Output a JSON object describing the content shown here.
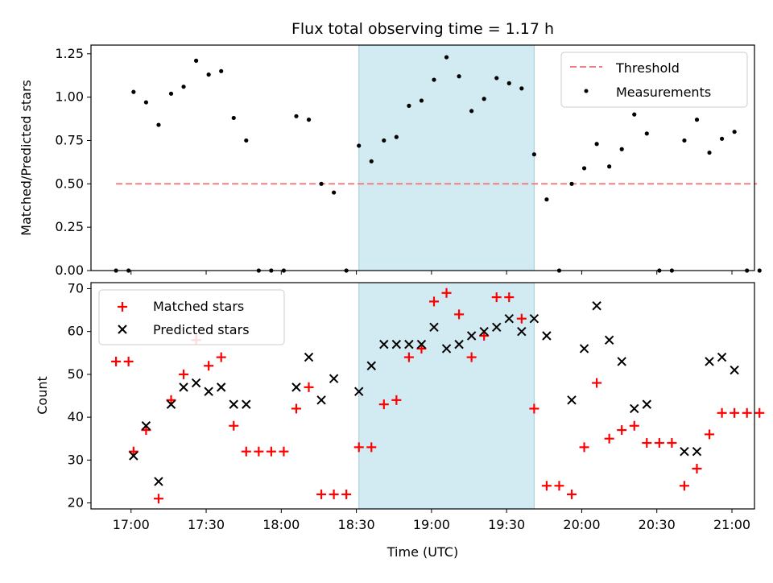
{
  "chart_data": {
    "type": "scatter",
    "title": "Flux total observing time = 1.17 h",
    "xlabel": "Time (UTC)",
    "x_ticks": [
      "17:00",
      "17:30",
      "18:00",
      "18:30",
      "19:00",
      "19:30",
      "20:00",
      "20:30",
      "21:00"
    ],
    "xlim": [
      "16:44",
      "21:09"
    ],
    "shaded_interval": [
      "18:31",
      "19:41"
    ],
    "shade_color": "#add8e6",
    "top": {
      "ylabel": "Matched/Predicted stars",
      "ylim": [
        0,
        1.3
      ],
      "y_ticks": [
        "0.00",
        "0.25",
        "0.50",
        "0.75",
        "1.00",
        "1.25"
      ],
      "legend": {
        "position": "upper right"
      },
      "threshold": {
        "name": "Threshold",
        "y": 0.5,
        "x_range": [
          "16:54",
          "21:10"
        ],
        "color": "#f08080"
      },
      "measurements": {
        "name": "Measurements",
        "color": "#000000",
        "points": [
          [
            "16:54",
            0.0
          ],
          [
            "16:59",
            0.0
          ],
          [
            "17:01",
            1.03
          ],
          [
            "17:06",
            0.97
          ],
          [
            "17:11",
            0.84
          ],
          [
            "17:16",
            1.02
          ],
          [
            "17:21",
            1.06
          ],
          [
            "17:26",
            1.21
          ],
          [
            "17:31",
            1.13
          ],
          [
            "17:36",
            1.15
          ],
          [
            "17:41",
            0.88
          ],
          [
            "17:46",
            0.75
          ],
          [
            "17:51",
            0.0
          ],
          [
            "17:56",
            0.0
          ],
          [
            "18:01",
            0.0
          ],
          [
            "18:06",
            0.89
          ],
          [
            "18:11",
            0.87
          ],
          [
            "18:16",
            0.5
          ],
          [
            "18:21",
            0.45
          ],
          [
            "18:26",
            0.0
          ],
          [
            "18:31",
            0.72
          ],
          [
            "18:36",
            0.63
          ],
          [
            "18:41",
            0.75
          ],
          [
            "18:46",
            0.77
          ],
          [
            "18:51",
            0.95
          ],
          [
            "18:56",
            0.98
          ],
          [
            "19:01",
            1.1
          ],
          [
            "19:06",
            1.23
          ],
          [
            "19:11",
            1.12
          ],
          [
            "19:16",
            0.92
          ],
          [
            "19:21",
            0.99
          ],
          [
            "19:26",
            1.11
          ],
          [
            "19:31",
            1.08
          ],
          [
            "19:36",
            1.05
          ],
          [
            "19:41",
            0.67
          ],
          [
            "19:46",
            0.41
          ],
          [
            "19:51",
            0.0
          ],
          [
            "19:56",
            0.5
          ],
          [
            "20:01",
            0.59
          ],
          [
            "20:06",
            0.73
          ],
          [
            "20:11",
            0.6
          ],
          [
            "20:16",
            0.7
          ],
          [
            "20:21",
            0.9
          ],
          [
            "20:26",
            0.79
          ],
          [
            "20:31",
            0.0
          ],
          [
            "20:36",
            0.0
          ],
          [
            "20:41",
            0.75
          ],
          [
            "20:46",
            0.87
          ],
          [
            "20:51",
            0.68
          ],
          [
            "20:56",
            0.76
          ],
          [
            "21:01",
            0.8
          ],
          [
            "21:06",
            0.0
          ],
          [
            "21:11",
            0.0
          ]
        ]
      }
    },
    "bottom": {
      "ylabel": "Count",
      "ylim": [
        18.6,
        71.4
      ],
      "y_ticks": [
        "20",
        "30",
        "40",
        "50",
        "60",
        "70"
      ],
      "legend": {
        "position": "upper left"
      },
      "series": [
        {
          "name": "Matched stars",
          "marker": "+",
          "color": "#ff0000",
          "points": [
            [
              "16:54",
              53
            ],
            [
              "16:59",
              53
            ],
            [
              "17:01",
              32
            ],
            [
              "17:06",
              37
            ],
            [
              "17:11",
              21
            ],
            [
              "17:16",
              44
            ],
            [
              "17:21",
              50
            ],
            [
              "17:26",
              58
            ],
            [
              "17:31",
              52
            ],
            [
              "17:36",
              54
            ],
            [
              "17:41",
              38
            ],
            [
              "17:46",
              32
            ],
            [
              "17:51",
              32
            ],
            [
              "17:56",
              32
            ],
            [
              "18:01",
              32
            ],
            [
              "18:06",
              42
            ],
            [
              "18:11",
              47
            ],
            [
              "18:16",
              22
            ],
            [
              "18:21",
              22
            ],
            [
              "18:26",
              22
            ],
            [
              "18:31",
              33
            ],
            [
              "18:36",
              33
            ],
            [
              "18:41",
              43
            ],
            [
              "18:46",
              44
            ],
            [
              "18:51",
              54
            ],
            [
              "18:56",
              56
            ],
            [
              "19:01",
              67
            ],
            [
              "19:06",
              69
            ],
            [
              "19:11",
              64
            ],
            [
              "19:16",
              54
            ],
            [
              "19:21",
              59
            ],
            [
              "19:26",
              68
            ],
            [
              "19:31",
              68
            ],
            [
              "19:36",
              63
            ],
            [
              "19:41",
              42
            ],
            [
              "19:46",
              24
            ],
            [
              "19:51",
              24
            ],
            [
              "19:56",
              22
            ],
            [
              "20:01",
              33
            ],
            [
              "20:06",
              48
            ],
            [
              "20:11",
              35
            ],
            [
              "20:16",
              37
            ],
            [
              "20:21",
              38
            ],
            [
              "20:26",
              34
            ],
            [
              "20:31",
              34
            ],
            [
              "20:36",
              34
            ],
            [
              "20:41",
              24
            ],
            [
              "20:46",
              28
            ],
            [
              "20:51",
              36
            ],
            [
              "20:56",
              41
            ],
            [
              "21:01",
              41
            ],
            [
              "21:06",
              41
            ],
            [
              "21:11",
              41
            ]
          ]
        },
        {
          "name": "Predicted stars",
          "marker": "x",
          "color": "#000000",
          "points": [
            [
              "17:01",
              31
            ],
            [
              "17:06",
              38
            ],
            [
              "17:11",
              25
            ],
            [
              "17:16",
              43
            ],
            [
              "17:21",
              47
            ],
            [
              "17:26",
              48
            ],
            [
              "17:31",
              46
            ],
            [
              "17:36",
              47
            ],
            [
              "17:41",
              43
            ],
            [
              "17:46",
              43
            ],
            [
              "18:06",
              47
            ],
            [
              "18:11",
              54
            ],
            [
              "18:16",
              44
            ],
            [
              "18:21",
              49
            ],
            [
              "18:31",
              46
            ],
            [
              "18:36",
              52
            ],
            [
              "18:41",
              57
            ],
            [
              "18:46",
              57
            ],
            [
              "18:51",
              57
            ],
            [
              "18:56",
              57
            ],
            [
              "19:01",
              61
            ],
            [
              "19:06",
              56
            ],
            [
              "19:11",
              57
            ],
            [
              "19:16",
              59
            ],
            [
              "19:21",
              60
            ],
            [
              "19:26",
              61
            ],
            [
              "19:31",
              63
            ],
            [
              "19:36",
              60
            ],
            [
              "19:41",
              63
            ],
            [
              "19:46",
              59
            ],
            [
              "19:56",
              44
            ],
            [
              "20:01",
              56
            ],
            [
              "20:06",
              66
            ],
            [
              "20:11",
              58
            ],
            [
              "20:16",
              53
            ],
            [
              "20:21",
              42
            ],
            [
              "20:26",
              43
            ],
            [
              "20:41",
              32
            ],
            [
              "20:46",
              32
            ],
            [
              "20:51",
              53
            ],
            [
              "20:56",
              54
            ],
            [
              "21:01",
              51
            ]
          ]
        }
      ]
    }
  }
}
